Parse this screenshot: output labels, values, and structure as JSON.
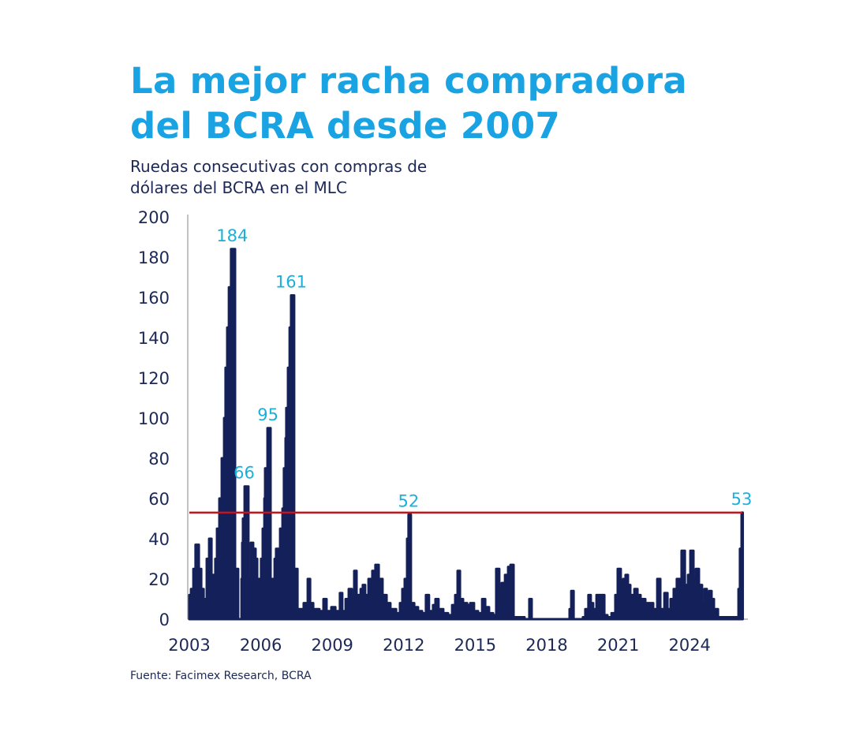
{
  "chart_data": {
    "type": "area",
    "title": "La mejor racha compradora del BCRA desde 2007",
    "title_lines": [
      "La mejor racha compradora",
      "del BCRA desde 2007"
    ],
    "subtitle_lines": [
      "Ruedas consecutivas con compras de",
      "dólares del BCRA en el MLC"
    ],
    "source": "Fuente: Facimex Research, BCRA",
    "xlabel": "",
    "ylabel": "",
    "ylim": [
      0,
      200
    ],
    "yticks": [
      0,
      20,
      40,
      60,
      80,
      100,
      120,
      140,
      160,
      180,
      200
    ],
    "xticks": [
      2003,
      2006,
      2009,
      2012,
      2015,
      2018,
      2021,
      2024
    ],
    "grid": false,
    "colors": {
      "series": "#14205a",
      "reference": "#c0161e",
      "annotation": "#1ab0dc",
      "title": "#1aa3e3"
    },
    "reference_line": 53,
    "annotations": [
      {
        "label": "184",
        "x": 2004.8,
        "value": 184
      },
      {
        "label": "66",
        "x": 2005.3,
        "value": 66
      },
      {
        "label": "95",
        "x": 2006.3,
        "value": 95
      },
      {
        "label": "161",
        "x": 2007.27,
        "value": 161
      },
      {
        "label": "52",
        "x": 2012.2,
        "value": 52
      },
      {
        "label": "53",
        "x": 2026.18,
        "value": 53
      }
    ],
    "points": [
      [
        2003.0,
        12
      ],
      [
        2003.07,
        15
      ],
      [
        2003.17,
        25
      ],
      [
        2003.26,
        37
      ],
      [
        2003.4,
        25
      ],
      [
        2003.5,
        15
      ],
      [
        2003.6,
        10
      ],
      [
        2003.73,
        30
      ],
      [
        2003.83,
        40
      ],
      [
        2003.93,
        15
      ],
      [
        2003.99,
        22
      ],
      [
        2004.09,
        30
      ],
      [
        2004.16,
        45
      ],
      [
        2004.26,
        60
      ],
      [
        2004.36,
        80
      ],
      [
        2004.46,
        100
      ],
      [
        2004.52,
        125
      ],
      [
        2004.59,
        145
      ],
      [
        2004.66,
        165
      ],
      [
        2004.75,
        184
      ],
      [
        2004.92,
        25
      ],
      [
        2005.05,
        0
      ],
      [
        2005.19,
        20
      ],
      [
        2005.22,
        38
      ],
      [
        2005.25,
        50
      ],
      [
        2005.32,
        66
      ],
      [
        2005.48,
        20
      ],
      [
        2005.58,
        38
      ],
      [
        2005.68,
        35
      ],
      [
        2005.78,
        30
      ],
      [
        2005.85,
        20
      ],
      [
        2006.01,
        30
      ],
      [
        2006.08,
        45
      ],
      [
        2006.15,
        60
      ],
      [
        2006.18,
        75
      ],
      [
        2006.28,
        95
      ],
      [
        2006.41,
        0
      ],
      [
        2006.48,
        20
      ],
      [
        2006.58,
        30
      ],
      [
        2006.64,
        35
      ],
      [
        2006.81,
        45
      ],
      [
        2006.91,
        55
      ],
      [
        2006.97,
        75
      ],
      [
        2007.04,
        90
      ],
      [
        2007.07,
        105
      ],
      [
        2007.14,
        125
      ],
      [
        2007.21,
        145
      ],
      [
        2007.27,
        161
      ],
      [
        2007.4,
        25
      ],
      [
        2007.54,
        5
      ],
      [
        2007.64,
        5
      ],
      [
        2007.8,
        8
      ],
      [
        2007.97,
        20
      ],
      [
        2008.07,
        8
      ],
      [
        2008.2,
        5
      ],
      [
        2008.46,
        4
      ],
      [
        2008.63,
        10
      ],
      [
        2008.76,
        4
      ],
      [
        2008.96,
        6
      ],
      [
        2009.13,
        4
      ],
      [
        2009.32,
        13
      ],
      [
        2009.42,
        4
      ],
      [
        2009.56,
        10
      ],
      [
        2009.69,
        15
      ],
      [
        2009.82,
        10
      ],
      [
        2009.92,
        24
      ],
      [
        2010.02,
        12
      ],
      [
        2010.19,
        15
      ],
      [
        2010.28,
        17
      ],
      [
        2010.38,
        12
      ],
      [
        2010.52,
        20
      ],
      [
        2010.68,
        24
      ],
      [
        2010.81,
        27
      ],
      [
        2010.95,
        20
      ],
      [
        2011.11,
        12
      ],
      [
        2011.28,
        8
      ],
      [
        2011.44,
        5
      ],
      [
        2011.68,
        3
      ],
      [
        2011.84,
        8
      ],
      [
        2011.94,
        15
      ],
      [
        2012.04,
        20
      ],
      [
        2012.14,
        40
      ],
      [
        2012.2,
        52
      ],
      [
        2012.3,
        8
      ],
      [
        2012.44,
        6
      ],
      [
        2012.6,
        4
      ],
      [
        2012.77,
        3
      ],
      [
        2012.93,
        12
      ],
      [
        2013.06,
        4
      ],
      [
        2013.23,
        7
      ],
      [
        2013.33,
        10
      ],
      [
        2013.46,
        5
      ],
      [
        2013.66,
        3
      ],
      [
        2013.86,
        2
      ],
      [
        2014.03,
        7
      ],
      [
        2014.16,
        12
      ],
      [
        2014.26,
        24
      ],
      [
        2014.36,
        10
      ],
      [
        2014.49,
        8
      ],
      [
        2014.66,
        7
      ],
      [
        2014.79,
        8
      ],
      [
        2014.95,
        4
      ],
      [
        2015.12,
        3
      ],
      [
        2015.29,
        10
      ],
      [
        2015.42,
        6
      ],
      [
        2015.58,
        3
      ],
      [
        2015.75,
        2
      ],
      [
        2015.88,
        25
      ],
      [
        2016.01,
        15
      ],
      [
        2016.11,
        18
      ],
      [
        2016.25,
        22
      ],
      [
        2016.38,
        26
      ],
      [
        2016.48,
        27
      ],
      [
        2016.61,
        1
      ],
      [
        2016.91,
        1
      ],
      [
        2017.07,
        0
      ],
      [
        2017.27,
        10
      ],
      [
        2017.37,
        0
      ],
      [
        2018.89,
        0
      ],
      [
        2018.96,
        5
      ],
      [
        2019.03,
        14
      ],
      [
        2019.13,
        0
      ],
      [
        2019.52,
        1
      ],
      [
        2019.62,
        5
      ],
      [
        2019.75,
        12
      ],
      [
        2019.85,
        8
      ],
      [
        2019.95,
        5
      ],
      [
        2020.09,
        12
      ],
      [
        2020.29,
        12
      ],
      [
        2020.42,
        2
      ],
      [
        2020.55,
        1
      ],
      [
        2020.72,
        3
      ],
      [
        2020.88,
        12
      ],
      [
        2020.98,
        25
      ],
      [
        2021.11,
        18
      ],
      [
        2021.21,
        20
      ],
      [
        2021.31,
        22
      ],
      [
        2021.41,
        17
      ],
      [
        2021.51,
        12
      ],
      [
        2021.68,
        15
      ],
      [
        2021.81,
        12
      ],
      [
        2021.94,
        10
      ],
      [
        2022.04,
        10
      ],
      [
        2022.14,
        8
      ],
      [
        2022.3,
        8
      ],
      [
        2022.47,
        5
      ],
      [
        2022.64,
        20
      ],
      [
        2022.77,
        5
      ],
      [
        2022.94,
        13
      ],
      [
        2023.07,
        5
      ],
      [
        2023.2,
        10
      ],
      [
        2023.33,
        15
      ],
      [
        2023.46,
        20
      ],
      [
        2023.66,
        34
      ],
      [
        2023.8,
        17
      ],
      [
        2023.93,
        22
      ],
      [
        2024.03,
        34
      ],
      [
        2024.16,
        20
      ],
      [
        2024.26,
        25
      ],
      [
        2024.39,
        17
      ],
      [
        2024.52,
        8
      ],
      [
        2024.62,
        15
      ],
      [
        2024.72,
        12
      ],
      [
        2024.82,
        14
      ],
      [
        2024.92,
        10
      ],
      [
        2025.02,
        5
      ],
      [
        2025.19,
        1
      ],
      [
        2026.01,
        1
      ],
      [
        2026.05,
        15
      ],
      [
        2026.11,
        35
      ],
      [
        2026.18,
        53
      ]
    ]
  }
}
